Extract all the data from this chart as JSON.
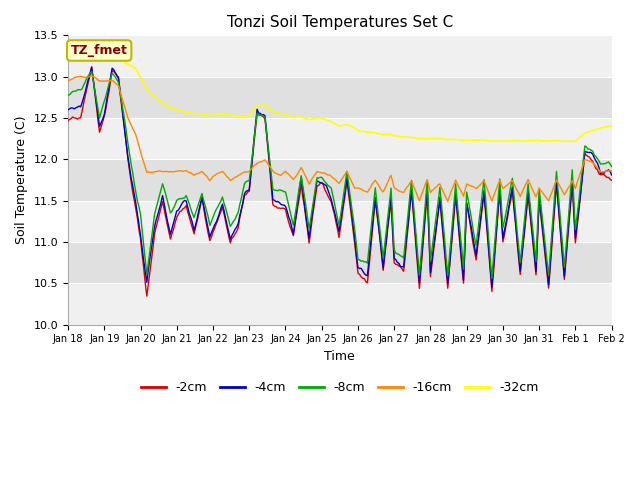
{
  "title": "Tonzi Soil Temperatures Set C",
  "xlabel": "Time",
  "ylabel": "Soil Temperature (C)",
  "ylim": [
    10.0,
    13.5
  ],
  "xlim": [
    0,
    345
  ],
  "annotation_text": "TZ_fmet",
  "annotation_bg": "#ffffcc",
  "annotation_border": "#bbbb00",
  "annotation_fg": "#880000",
  "plot_bg": "#ffffff",
  "fig_bg": "#ffffff",
  "band_light": "#f0f0f0",
  "band_dark": "#e0e0e0",
  "series": [
    {
      "label": "-2cm",
      "color": "#dd0000",
      "lw": 1.0
    },
    {
      "label": "-4cm",
      "color": "#0000cc",
      "lw": 1.0
    },
    {
      "label": "-8cm",
      "color": "#00aa00",
      "lw": 1.0
    },
    {
      "label": "-16cm",
      "color": "#ff8800",
      "lw": 1.0
    },
    {
      "label": "-32cm",
      "color": "#ffff00",
      "lw": 1.2
    }
  ],
  "xtick_labels": [
    "Jan 18",
    "Jan 19",
    "Jan 20",
    "Jan 21",
    "Jan 22",
    "Jan 23",
    "Jan 24",
    "Jan 25",
    "Jan 26",
    "Jan 27",
    "Jan 28",
    "Jan 29",
    "Jan 30",
    "Jan 31",
    "Feb 1",
    "Feb 2"
  ],
  "xtick_positions": [
    0,
    23,
    46,
    69,
    92,
    115,
    138,
    161,
    184,
    207,
    230,
    253,
    276,
    299,
    322,
    345
  ],
  "yticks": [
    10.0,
    10.5,
    11.0,
    11.5,
    12.0,
    12.5,
    13.0,
    13.5
  ],
  "title_fontsize": 11,
  "label_fontsize": 9,
  "tick_fontsize": 8
}
